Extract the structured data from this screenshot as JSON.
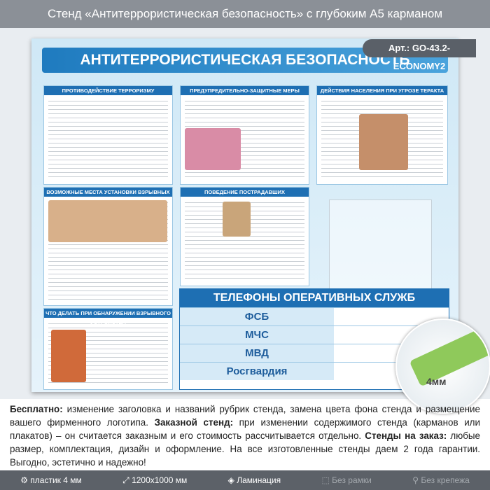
{
  "header": {
    "title": "Стенд «Антитеррористическая безопасность» с глубоким А5 карманом"
  },
  "stand": {
    "article": "Арт.: GO-43.2-ECONOMY2",
    "title": "АНТИТЕРРОРИСТИЧЕСКАЯ БЕЗОПАСНОСТЬ",
    "panels": [
      "ПРОТИВОДЕЙСТВИЕ ТЕРРОРИЗМУ",
      "ПРЕДУПРЕДИТЕЛЬНО-ЗАЩИТНЫЕ МЕРЫ",
      "ДЕЙСТВИЯ НАСЕЛЕНИЯ ПРИ УГРОЗЕ ТЕРАКТА",
      "ВОЗМОЖНЫЕ МЕСТА УСТАНОВКИ ВЗРЫВНЫХ УСТРОЙСТВ",
      "ПОВЕДЕНИЕ ПОСТРАДАВШИХ",
      "ЧТО ДЕЛАТЬ ПРИ ОБНАРУЖЕНИИ ВЗРЫВНОГО УСТРОЙСТВА"
    ],
    "phones": {
      "title": "ТЕЛЕФОНЫ ОПЕРАТИВНЫХ СЛУЖБ",
      "rows": [
        "ФСБ",
        "МЧС",
        "МВД",
        "Росгвардия"
      ]
    },
    "thickness": "4мм"
  },
  "description": [
    "Бесплатно:",
    " изменение заголовка и названий рубрик стенда, замена цвета фона стенда и размещение вашего фирменного логотипа. ",
    "Заказной стенд:",
    " при изменении содержимого стенда (карманов или плакатов) – он считается заказным и его стоимость рассчитывается отдельно. ",
    "Стенды на заказ:",
    " любые размер, комплектация, дизайн и оформление. На все изготовленные стенды даем 2 года гарантии. Выгодно, эстетично и надежно!"
  ],
  "footer": {
    "features": [
      "пластик 4 мм",
      "1200x1000 мм",
      "Ламинация",
      "Без рамки",
      "Без крепежа"
    ]
  }
}
